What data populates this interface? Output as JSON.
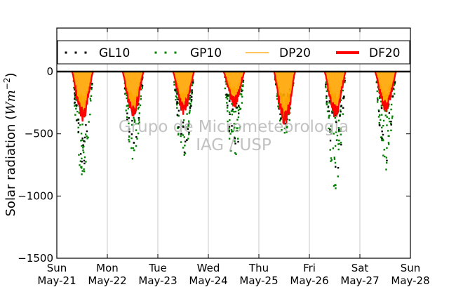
{
  "chart_data": {
    "type": "line",
    "ylabel_text": "Solar radiation (",
    "ylabel_unit_base": "Wm",
    "ylabel_unit_exp": "−2",
    "ylabel_close": ")",
    "ylim": [
      -1500,
      350
    ],
    "yticks": [
      0,
      -500,
      -1000,
      -1500
    ],
    "ytick_labels": [
      "0",
      "−500",
      "−1000",
      "−1500"
    ],
    "xlim_days": [
      21,
      28
    ],
    "xtick_labels": [
      {
        "day": "Sun",
        "date": "May-21"
      },
      {
        "day": "Mon",
        "date": "May-22"
      },
      {
        "day": "Tue",
        "date": "May-23"
      },
      {
        "day": "Wed",
        "date": "May-24"
      },
      {
        "day": "Thu",
        "date": "May-25"
      },
      {
        "day": "Fri",
        "date": "May-26"
      },
      {
        "day": "Sat",
        "date": "May-27"
      },
      {
        "day": "Sun",
        "date": "May-28"
      }
    ],
    "grid": "vertical",
    "legend_position": "top",
    "watermark_line1": "Grupo de Micrometeorologia",
    "watermark_line2": "IAG / USP",
    "series": [
      {
        "name": "GL10",
        "style": "dots",
        "color": "#000000"
      },
      {
        "name": "GP10",
        "style": "dots",
        "color": "#008000"
      },
      {
        "name": "DP20",
        "style": "line",
        "color": "#ffa500"
      },
      {
        "name": "DF20",
        "style": "line",
        "color": "#ff0000"
      }
    ],
    "daily_peaks": {
      "dates": [
        "May-21",
        "May-22",
        "May-23",
        "May-24",
        "May-25",
        "May-26",
        "May-27"
      ],
      "GP10_min": [
        -850,
        -730,
        -750,
        -760,
        -540,
        -950,
        -790
      ],
      "DF20_min": [
        -370,
        -350,
        -320,
        -260,
        -420,
        -340,
        -300
      ]
    }
  }
}
